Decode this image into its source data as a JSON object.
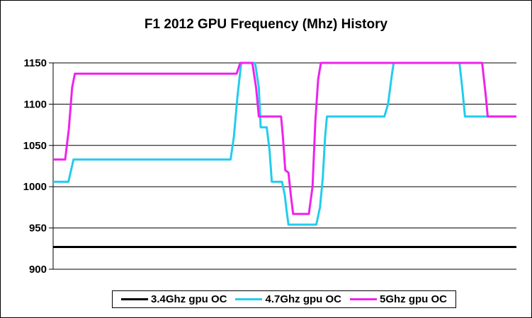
{
  "chart_data": {
    "type": "line",
    "title": "F1 2012 GPU Frequency (Mhz) History",
    "xlabel": "",
    "ylabel": "",
    "ylim": [
      900,
      1150
    ],
    "yticks": [
      900,
      950,
      1000,
      1050,
      1100,
      1150
    ],
    "xlim": [
      0,
      100
    ],
    "grid": "horizontal",
    "legend_position": "bottom",
    "series": [
      {
        "name": "3.4Ghz gpu OC",
        "color": "#000000",
        "points": [
          [
            0,
            927
          ],
          [
            100,
            927
          ]
        ]
      },
      {
        "name": "4.7Ghz gpu OC",
        "color": "#22ccee",
        "points": [
          [
            0,
            1006
          ],
          [
            3.3,
            1006
          ],
          [
            4.4,
            1033
          ],
          [
            38.3,
            1033
          ],
          [
            39.0,
            1060
          ],
          [
            39.8,
            1110
          ],
          [
            40.6,
            1150
          ],
          [
            43.6,
            1150
          ],
          [
            44.4,
            1120
          ],
          [
            44.8,
            1072
          ],
          [
            46.1,
            1072
          ],
          [
            46.7,
            1045
          ],
          [
            47.2,
            1006
          ],
          [
            49.4,
            1006
          ],
          [
            50.0,
            990
          ],
          [
            50.4,
            971
          ],
          [
            50.8,
            954
          ],
          [
            56.8,
            954
          ],
          [
            57.6,
            975
          ],
          [
            58.2,
            1010
          ],
          [
            58.7,
            1060
          ],
          [
            59.1,
            1085
          ],
          [
            71.5,
            1085
          ],
          [
            72.3,
            1100
          ],
          [
            73.1,
            1135
          ],
          [
            73.5,
            1150
          ],
          [
            87.7,
            1150
          ],
          [
            88.3,
            1120
          ],
          [
            88.9,
            1085
          ],
          [
            100,
            1085
          ]
        ]
      },
      {
        "name": "5Ghz gpu OC",
        "color": "#ee22ee",
        "points": [
          [
            0,
            1033
          ],
          [
            2.6,
            1033
          ],
          [
            3.4,
            1070
          ],
          [
            4.1,
            1120
          ],
          [
            4.7,
            1137
          ],
          [
            39.6,
            1137
          ],
          [
            40.4,
            1150
          ],
          [
            43.0,
            1150
          ],
          [
            43.8,
            1120
          ],
          [
            44.4,
            1085
          ],
          [
            49.2,
            1085
          ],
          [
            49.6,
            1060
          ],
          [
            50.1,
            1020
          ],
          [
            50.8,
            1017
          ],
          [
            51.3,
            990
          ],
          [
            51.8,
            967
          ],
          [
            55.2,
            967
          ],
          [
            56.0,
            1000
          ],
          [
            56.6,
            1080
          ],
          [
            57.2,
            1130
          ],
          [
            57.8,
            1150
          ],
          [
            92.6,
            1150
          ],
          [
            93.4,
            1110
          ],
          [
            93.8,
            1085
          ],
          [
            100,
            1085
          ]
        ]
      }
    ]
  }
}
